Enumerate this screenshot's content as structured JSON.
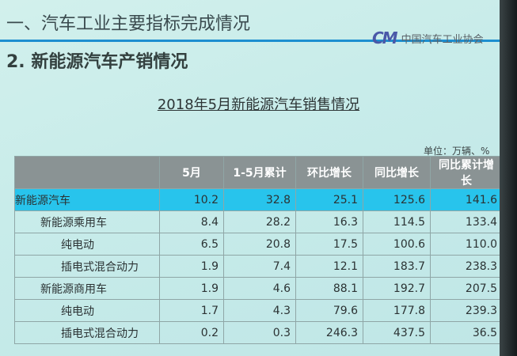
{
  "slide": {
    "section_title": "一、汽车工业主要指标完成情况",
    "subsection_title": "2. 新能源汽车产销情况",
    "logo": {
      "mark": "CM",
      "org": "中国汽车工业协会"
    },
    "table_title": "2018年5月新能源汽车销售情况",
    "unit": "单位：万辆、%"
  },
  "chart_data": {
    "type": "table",
    "title": "2018年5月新能源汽车销售情况",
    "columns": [
      "",
      "5月",
      "1-5月累计",
      "环比增长",
      "同比增长",
      "同比累计增长"
    ],
    "rows": [
      {
        "label": "新能源汽车",
        "values": [
          "10.2",
          "32.8",
          "25.1",
          "125.6",
          "141.6"
        ]
      },
      {
        "label": "新能源乘用车",
        "values": [
          "8.4",
          "28.2",
          "16.3",
          "114.5",
          "133.4"
        ]
      },
      {
        "label": "纯电动",
        "values": [
          "6.5",
          "20.8",
          "17.5",
          "100.6",
          "110.0"
        ]
      },
      {
        "label": "插电式混合动力",
        "values": [
          "1.9",
          "7.4",
          "12.1",
          "183.7",
          "238.3"
        ]
      },
      {
        "label": "新能源商用车",
        "values": [
          "1.9",
          "4.6",
          "88.1",
          "192.7",
          "207.5"
        ]
      },
      {
        "label": "纯电动",
        "values": [
          "1.7",
          "4.3",
          "79.6",
          "177.8",
          "239.3"
        ]
      },
      {
        "label": "插电式混合动力",
        "values": [
          "0.2",
          "0.3",
          "246.3",
          "437.5",
          "36.5"
        ]
      }
    ],
    "highlight_color": "#28c4ec",
    "header_color": "#8a9394"
  }
}
